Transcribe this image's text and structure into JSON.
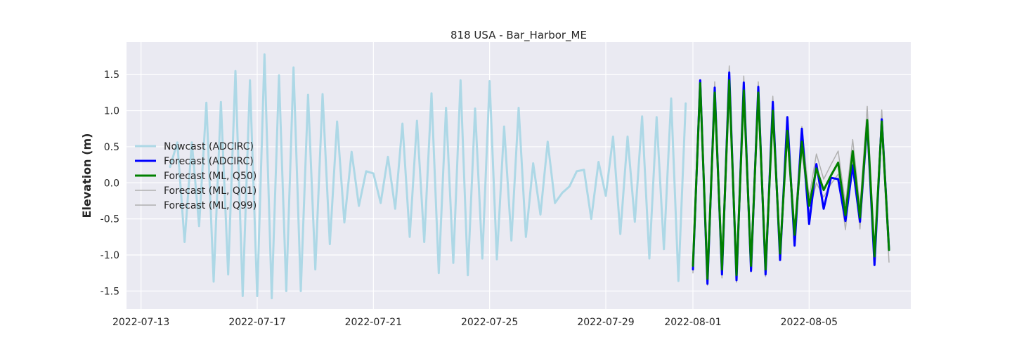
{
  "chart_data": {
    "type": "line",
    "title": "818 USA - Bar_Harbor_ME",
    "xlabel": "",
    "ylabel": "Elevation (m)",
    "xlim": [
      "2022-07-12T12:00",
      "2022-08-08T12:00"
    ],
    "ylim": [
      -1.75,
      1.95
    ],
    "x_ticks": [
      "2022-07-13",
      "2022-07-17",
      "2022-07-21",
      "2022-07-25",
      "2022-07-29",
      "2022-08-01",
      "2022-08-05"
    ],
    "y_ticks": [
      -1.5,
      -1.0,
      -0.5,
      0.0,
      0.5,
      1.0,
      1.5
    ],
    "grid": true,
    "legend_position": "center-left",
    "colors": {
      "plot_background": "#eaeaf2",
      "grid": "#ffffff",
      "text": "#262626"
    },
    "series": [
      {
        "name": "Nowcast (ADCIRC)",
        "color": "#add8e6",
        "width": 3,
        "points": [
          [
            "2022-07-14T00:00",
            0.22
          ],
          [
            "2022-07-14T06:00",
            0.56
          ],
          [
            "2022-07-14T12:00",
            -0.82
          ],
          [
            "2022-07-14T18:00",
            0.56
          ],
          [
            "2022-07-15T00:00",
            -0.6
          ],
          [
            "2022-07-15T06:00",
            1.11
          ],
          [
            "2022-07-15T12:00",
            -1.37
          ],
          [
            "2022-07-15T18:00",
            1.12
          ],
          [
            "2022-07-16T00:00",
            -1.27
          ],
          [
            "2022-07-16T06:00",
            1.55
          ],
          [
            "2022-07-16T12:00",
            -1.57
          ],
          [
            "2022-07-16T18:00",
            1.42
          ],
          [
            "2022-07-17T00:00",
            -1.57
          ],
          [
            "2022-07-17T06:00",
            1.78
          ],
          [
            "2022-07-17T12:00",
            -1.6
          ],
          [
            "2022-07-17T18:00",
            1.49
          ],
          [
            "2022-07-18T00:00",
            -1.5
          ],
          [
            "2022-07-18T06:00",
            1.6
          ],
          [
            "2022-07-18T12:00",
            -1.5
          ],
          [
            "2022-07-18T18:00",
            1.22
          ],
          [
            "2022-07-19T00:00",
            -1.2
          ],
          [
            "2022-07-19T06:00",
            1.23
          ],
          [
            "2022-07-19T12:00",
            -0.85
          ],
          [
            "2022-07-19T18:00",
            0.85
          ],
          [
            "2022-07-20T00:00",
            -0.55
          ],
          [
            "2022-07-20T06:00",
            0.43
          ],
          [
            "2022-07-20T12:00",
            -0.32
          ],
          [
            "2022-07-20T18:00",
            0.16
          ],
          [
            "2022-07-21T00:00",
            0.13
          ],
          [
            "2022-07-21T06:00",
            -0.28
          ],
          [
            "2022-07-21T12:00",
            0.36
          ],
          [
            "2022-07-21T18:00",
            -0.36
          ],
          [
            "2022-07-22T00:00",
            0.82
          ],
          [
            "2022-07-22T06:00",
            -0.75
          ],
          [
            "2022-07-22T12:00",
            0.86
          ],
          [
            "2022-07-22T18:00",
            -0.82
          ],
          [
            "2022-07-23T00:00",
            1.24
          ],
          [
            "2022-07-23T06:00",
            -1.25
          ],
          [
            "2022-07-23T12:00",
            1.04
          ],
          [
            "2022-07-23T18:00",
            -1.11
          ],
          [
            "2022-07-24T00:00",
            1.42
          ],
          [
            "2022-07-24T06:00",
            -1.28
          ],
          [
            "2022-07-24T12:00",
            1.03
          ],
          [
            "2022-07-24T18:00",
            -1.05
          ],
          [
            "2022-07-25T00:00",
            1.41
          ],
          [
            "2022-07-25T06:00",
            -1.06
          ],
          [
            "2022-07-25T12:00",
            0.78
          ],
          [
            "2022-07-25T18:00",
            -0.8
          ],
          [
            "2022-07-26T00:00",
            1.04
          ],
          [
            "2022-07-26T06:00",
            -0.75
          ],
          [
            "2022-07-26T12:00",
            0.27
          ],
          [
            "2022-07-26T18:00",
            -0.44
          ],
          [
            "2022-07-27T00:00",
            0.57
          ],
          [
            "2022-07-27T06:00",
            -0.28
          ],
          [
            "2022-07-27T12:00",
            -0.14
          ],
          [
            "2022-07-27T18:00",
            -0.05
          ],
          [
            "2022-07-28T00:00",
            0.16
          ],
          [
            "2022-07-28T06:00",
            0.18
          ],
          [
            "2022-07-28T12:00",
            -0.5
          ],
          [
            "2022-07-28T18:00",
            0.29
          ],
          [
            "2022-07-29T00:00",
            -0.18
          ],
          [
            "2022-07-29T06:00",
            0.64
          ],
          [
            "2022-07-29T12:00",
            -0.71
          ],
          [
            "2022-07-29T18:00",
            0.64
          ],
          [
            "2022-07-30T00:00",
            -0.54
          ],
          [
            "2022-07-30T06:00",
            0.92
          ],
          [
            "2022-07-30T12:00",
            -1.05
          ],
          [
            "2022-07-30T18:00",
            0.91
          ],
          [
            "2022-07-31T00:00",
            -0.92
          ],
          [
            "2022-07-31T06:00",
            1.17
          ],
          [
            "2022-07-31T12:00",
            -1.36
          ],
          [
            "2022-07-31T18:00",
            1.1
          ]
        ]
      },
      {
        "name": "Forecast (ADCIRC)",
        "color": "#0000ff",
        "width": 3,
        "points": [
          [
            "2022-08-01T00:00",
            -1.2
          ],
          [
            "2022-08-01T06:00",
            1.42
          ],
          [
            "2022-08-01T12:00",
            -1.4
          ],
          [
            "2022-08-01T18:00",
            1.32
          ],
          [
            "2022-08-02T00:00",
            -1.27
          ],
          [
            "2022-08-02T06:00",
            1.53
          ],
          [
            "2022-08-02T12:00",
            -1.35
          ],
          [
            "2022-08-02T18:00",
            1.39
          ],
          [
            "2022-08-03T00:00",
            -1.22
          ],
          [
            "2022-08-03T06:00",
            1.33
          ],
          [
            "2022-08-03T12:00",
            -1.27
          ],
          [
            "2022-08-03T18:00",
            1.12
          ],
          [
            "2022-08-04T00:00",
            -1.07
          ],
          [
            "2022-08-04T06:00",
            0.91
          ],
          [
            "2022-08-04T12:00",
            -0.87
          ],
          [
            "2022-08-04T18:00",
            0.75
          ],
          [
            "2022-08-05T00:00",
            -0.57
          ],
          [
            "2022-08-05T06:00",
            0.26
          ],
          [
            "2022-08-05T12:00",
            -0.36
          ],
          [
            "2022-08-05T18:00",
            0.07
          ],
          [
            "2022-08-06T00:00",
            0.05
          ],
          [
            "2022-08-06T06:00",
            -0.53
          ],
          [
            "2022-08-06T12:00",
            0.24
          ],
          [
            "2022-08-06T18:00",
            -0.54
          ],
          [
            "2022-08-07T00:00",
            0.84
          ],
          [
            "2022-08-07T06:00",
            -1.14
          ],
          [
            "2022-08-07T12:00",
            0.88
          ],
          [
            "2022-08-07T18:00",
            -0.93
          ]
        ]
      },
      {
        "name": "Forecast (ML, Q50)",
        "color": "#008000",
        "width": 3,
        "points": [
          [
            "2022-08-01T00:00",
            -1.15
          ],
          [
            "2022-08-01T06:00",
            1.38
          ],
          [
            "2022-08-01T12:00",
            -1.33
          ],
          [
            "2022-08-01T18:00",
            1.25
          ],
          [
            "2022-08-02T00:00",
            -1.2
          ],
          [
            "2022-08-02T06:00",
            1.42
          ],
          [
            "2022-08-02T12:00",
            -1.28
          ],
          [
            "2022-08-02T18:00",
            1.28
          ],
          [
            "2022-08-03T00:00",
            -1.15
          ],
          [
            "2022-08-03T06:00",
            1.25
          ],
          [
            "2022-08-03T12:00",
            -1.2
          ],
          [
            "2022-08-03T18:00",
            1.0
          ],
          [
            "2022-08-04T00:00",
            -0.98
          ],
          [
            "2022-08-04T06:00",
            0.72
          ],
          [
            "2022-08-04T12:00",
            -0.72
          ],
          [
            "2022-08-04T18:00",
            0.57
          ],
          [
            "2022-08-05T00:00",
            -0.32
          ],
          [
            "2022-08-05T06:00",
            0.2
          ],
          [
            "2022-08-05T12:00",
            -0.1
          ],
          [
            "2022-08-05T18:00",
            0.1
          ],
          [
            "2022-08-06T00:00",
            0.28
          ],
          [
            "2022-08-06T06:00",
            -0.45
          ],
          [
            "2022-08-06T12:00",
            0.44
          ],
          [
            "2022-08-06T18:00",
            -0.48
          ],
          [
            "2022-08-07T00:00",
            0.87
          ],
          [
            "2022-08-07T06:00",
            -1.02
          ],
          [
            "2022-08-07T12:00",
            0.85
          ],
          [
            "2022-08-07T18:00",
            -0.93
          ]
        ]
      },
      {
        "name": "Forecast (ML, Q01)",
        "color": "#b0b0b0",
        "width": 1.5,
        "points": [
          [
            "2022-08-01T00:00",
            -1.25
          ],
          [
            "2022-08-01T06:00",
            1.3
          ],
          [
            "2022-08-01T12:00",
            -1.42
          ],
          [
            "2022-08-01T18:00",
            1.15
          ],
          [
            "2022-08-02T00:00",
            -1.32
          ],
          [
            "2022-08-02T06:00",
            1.32
          ],
          [
            "2022-08-02T12:00",
            -1.38
          ],
          [
            "2022-08-02T18:00",
            1.18
          ],
          [
            "2022-08-03T00:00",
            -1.24
          ],
          [
            "2022-08-03T06:00",
            1.12
          ],
          [
            "2022-08-03T12:00",
            -1.3
          ],
          [
            "2022-08-03T18:00",
            0.9
          ],
          [
            "2022-08-04T00:00",
            -1.05
          ],
          [
            "2022-08-04T06:00",
            0.6
          ],
          [
            "2022-08-04T12:00",
            -0.8
          ],
          [
            "2022-08-04T18:00",
            0.45
          ],
          [
            "2022-08-05T00:00",
            -0.42
          ],
          [
            "2022-08-05T06:00",
            0.0
          ],
          [
            "2022-08-05T12:00",
            -0.2
          ],
          [
            "2022-08-05T18:00",
            -0.02
          ],
          [
            "2022-08-06T00:00",
            0.12
          ],
          [
            "2022-08-06T06:00",
            -0.65
          ],
          [
            "2022-08-06T12:00",
            0.3
          ],
          [
            "2022-08-06T18:00",
            -0.64
          ],
          [
            "2022-08-07T00:00",
            0.72
          ],
          [
            "2022-08-07T06:00",
            -1.12
          ],
          [
            "2022-08-07T12:00",
            0.72
          ],
          [
            "2022-08-07T18:00",
            -1.1
          ]
        ]
      },
      {
        "name": "Forecast (ML, Q99)",
        "color": "#b0b0b0",
        "width": 1.5,
        "points": [
          [
            "2022-08-01T00:00",
            -1.08
          ],
          [
            "2022-08-01T06:00",
            1.43
          ],
          [
            "2022-08-01T12:00",
            -1.25
          ],
          [
            "2022-08-01T18:00",
            1.4
          ],
          [
            "2022-08-02T00:00",
            -1.1
          ],
          [
            "2022-08-02T06:00",
            1.62
          ],
          [
            "2022-08-02T12:00",
            -1.2
          ],
          [
            "2022-08-02T18:00",
            1.48
          ],
          [
            "2022-08-03T00:00",
            -1.05
          ],
          [
            "2022-08-03T06:00",
            1.4
          ],
          [
            "2022-08-03T12:00",
            -1.1
          ],
          [
            "2022-08-03T18:00",
            1.2
          ],
          [
            "2022-08-04T00:00",
            -0.9
          ],
          [
            "2022-08-04T06:00",
            0.85
          ],
          [
            "2022-08-04T12:00",
            -0.62
          ],
          [
            "2022-08-04T18:00",
            0.78
          ],
          [
            "2022-08-05T00:00",
            -0.2
          ],
          [
            "2022-08-05T06:00",
            0.4
          ],
          [
            "2022-08-05T12:00",
            0.05
          ],
          [
            "2022-08-05T18:00",
            0.25
          ],
          [
            "2022-08-06T00:00",
            0.44
          ],
          [
            "2022-08-06T06:00",
            -0.3
          ],
          [
            "2022-08-06T12:00",
            0.6
          ],
          [
            "2022-08-06T18:00",
            -0.33
          ],
          [
            "2022-08-07T00:00",
            1.06
          ],
          [
            "2022-08-07T06:00",
            -0.92
          ],
          [
            "2022-08-07T12:00",
            1.01
          ],
          [
            "2022-08-07T18:00",
            -0.78
          ]
        ]
      }
    ]
  }
}
